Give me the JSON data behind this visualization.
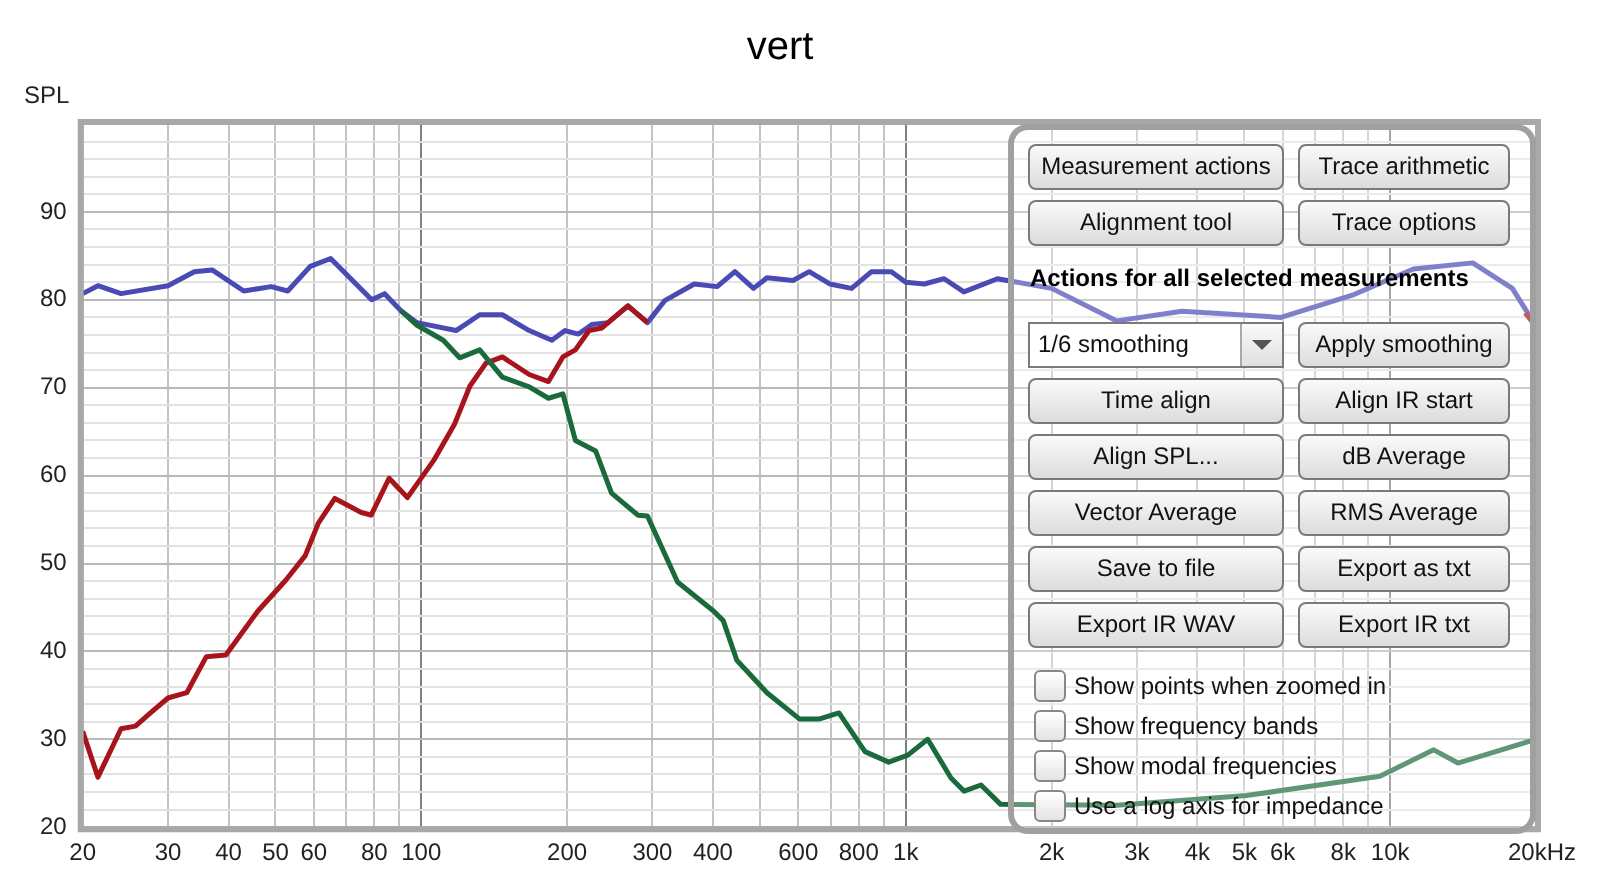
{
  "chart_data": [
    {
      "type": "line",
      "title": "vert",
      "xlabel": "20kHz",
      "ylabel": "SPL",
      "log": "x",
      "grid": true,
      "marker": "none",
      "legend": false,
      "xlim": [
        20,
        20000
      ],
      "ylim": [
        20,
        100
      ],
      "xticks": [
        20,
        30,
        40,
        50,
        60,
        {
          "value": 70,
          "label": null
        },
        80,
        {
          "value": 90,
          "label": null
        },
        100,
        200,
        300,
        400,
        {
          "value": 500,
          "label": null
        },
        600,
        {
          "value": 700,
          "label": null
        },
        800,
        {
          "value": 900,
          "label": null
        },
        {
          "value": 1000,
          "label": "1k"
        },
        {
          "value": 2000,
          "label": "2k"
        },
        {
          "value": 3000,
          "label": "3k"
        },
        {
          "value": 4000,
          "label": "4k"
        },
        {
          "value": 5000,
          "label": "5k"
        },
        {
          "value": 6000,
          "label": "6k"
        },
        {
          "value": 7000,
          "label": null
        },
        {
          "value": 8000,
          "label": "8k"
        },
        {
          "value": 9000,
          "label": null
        },
        {
          "value": 10000,
          "label": "10k"
        },
        {
          "value": 20000,
          "label": null
        }
      ],
      "yticks": [
        20,
        {
          "value": 22,
          "label": null
        },
        {
          "value": 24,
          "label": null
        },
        {
          "value": 26,
          "label": null
        },
        {
          "value": 28,
          "label": null
        },
        30,
        {
          "value": 32,
          "label": null
        },
        {
          "value": 34,
          "label": null
        },
        {
          "value": 36,
          "label": null
        },
        {
          "value": 38,
          "label": null
        },
        40,
        {
          "value": 42,
          "label": null
        },
        {
          "value": 44,
          "label": null
        },
        {
          "value": 46,
          "label": null
        },
        {
          "value": 48,
          "label": null
        },
        50,
        {
          "value": 52,
          "label": null
        },
        {
          "value": 54,
          "label": null
        },
        {
          "value": 56,
          "label": null
        },
        {
          "value": 58,
          "label": null
        },
        60,
        {
          "value": 62,
          "label": null
        },
        {
          "value": 64,
          "label": null
        },
        {
          "value": 66,
          "label": null
        },
        {
          "value": 68,
          "label": null
        },
        70,
        {
          "value": 72,
          "label": null
        },
        {
          "value": 74,
          "label": null
        },
        {
          "value": 76,
          "label": null
        },
        {
          "value": 78,
          "label": null
        },
        80,
        {
          "value": 82,
          "label": null
        },
        {
          "value": 84,
          "label": null
        },
        {
          "value": 86,
          "label": null
        },
        {
          "value": 88,
          "label": null
        },
        90,
        {
          "value": 92,
          "label": null
        },
        {
          "value": 94,
          "label": null
        },
        {
          "value": 96,
          "label": null
        },
        {
          "value": 98,
          "label": null
        },
        {
          "value": 100,
          "label": null
        }
      ],
      "series": [
        {
          "color": "#1a6a3c",
          "x": [
            91,
            98,
            111,
            120,
            132,
            147,
            167,
            183,
            196,
            208,
            229,
            247,
            280,
            293,
            338,
            401,
            420,
            448,
            517,
            604,
            662,
            728,
            824,
            922,
            1010,
            1110,
            1240,
            1320,
            1430,
            1570,
            2730,
            5050,
            9520,
            12300,
            13800,
            20000
          ],
          "values": [
            78.7,
            77.1,
            75.4,
            73.4,
            74.3,
            71.2,
            70.1,
            68.8,
            69.3,
            64.0,
            62.8,
            58.0,
            55.5,
            55.4,
            47.9,
            44.6,
            43.5,
            39.0,
            35.3,
            32.3,
            32.3,
            33.0,
            28.6,
            27.4,
            28.2,
            30.0,
            25.6,
            24.1,
            24.8,
            22.6,
            22.5,
            23.6,
            25.8,
            28.8,
            27.3,
            30.0
          ]
        },
        {
          "color": "#a8141c",
          "x": [
            20,
            21.5,
            24,
            25.7,
            27.6,
            30,
            32.8,
            36,
            39.5,
            46,
            52.5,
            57.6,
            61.3,
            66.3,
            75.2,
            78.8,
            85.8,
            93.6,
            106,
            117,
            126,
            136,
            147,
            167,
            183,
            196,
            208,
            222,
            236,
            267,
            293,
            1000,
            19000,
            20000
          ],
          "values": [
            30.9,
            25.7,
            31.2,
            31.5,
            33.0,
            34.7,
            35.3,
            39.4,
            39.6,
            44.6,
            48.1,
            50.9,
            54.6,
            57.4,
            55.8,
            55.5,
            59.7,
            57.5,
            61.7,
            65.8,
            70.2,
            72.8,
            73.5,
            71.5,
            70.7,
            73.5,
            74.3,
            76.5,
            76.8,
            79.3,
            77.4,
            null,
            78.5,
            77.0
          ]
        },
        {
          "color": "#4a4ab4",
          "x": [
            20,
            21.5,
            24,
            30,
            34,
            37,
            43,
            49,
            53,
            59,
            65,
            79,
            84,
            91,
            98,
            118,
            132,
            147,
            167,
            186,
            198,
            211,
            225,
            243,
            267,
            293,
            318,
            366,
            408,
            444,
            485,
            517,
            585,
            632,
            697,
            773,
            850,
            934,
            1000,
            1092,
            1200,
            1318,
            1546,
            2000,
            2728,
            3716,
            5950,
            8420,
            11170,
            14800,
            17870,
            20000
          ],
          "values": [
            80.7,
            81.6,
            80.7,
            81.6,
            83.2,
            83.4,
            81.0,
            81.5,
            81.0,
            83.8,
            84.7,
            80.0,
            80.7,
            78.7,
            77.4,
            76.5,
            78.3,
            78.3,
            76.5,
            75.4,
            76.5,
            76.1,
            77.2,
            77.4,
            79.3,
            77.4,
            79.9,
            81.8,
            81.5,
            83.2,
            81.3,
            82.5,
            82.2,
            83.2,
            81.8,
            81.3,
            83.2,
            83.2,
            82.0,
            81.8,
            82.4,
            80.9,
            82.4,
            81.3,
            77.6,
            78.7,
            78.0,
            80.6,
            83.5,
            84.2,
            81.3,
            77.0
          ]
        }
      ]
    },
    {
      "type": "other",
      "annotations": [
        "Measurement actions",
        "Trace arithmetic",
        "Alignment tool",
        "Trace options",
        "Actions for all selected measurements",
        "1/6 smoothing",
        "Apply smoothing",
        "Time align",
        "Align IR start",
        "Align SPL...",
        "dB Average",
        "Vector Average",
        "RMS Average",
        "Save to file",
        "Export as txt",
        "Export IR WAV",
        "Export IR txt",
        "Show points when zoomed in",
        "Show frequency bands",
        "Show modal frequencies",
        "Use a log axis for impedance"
      ]
    }
  ]
}
